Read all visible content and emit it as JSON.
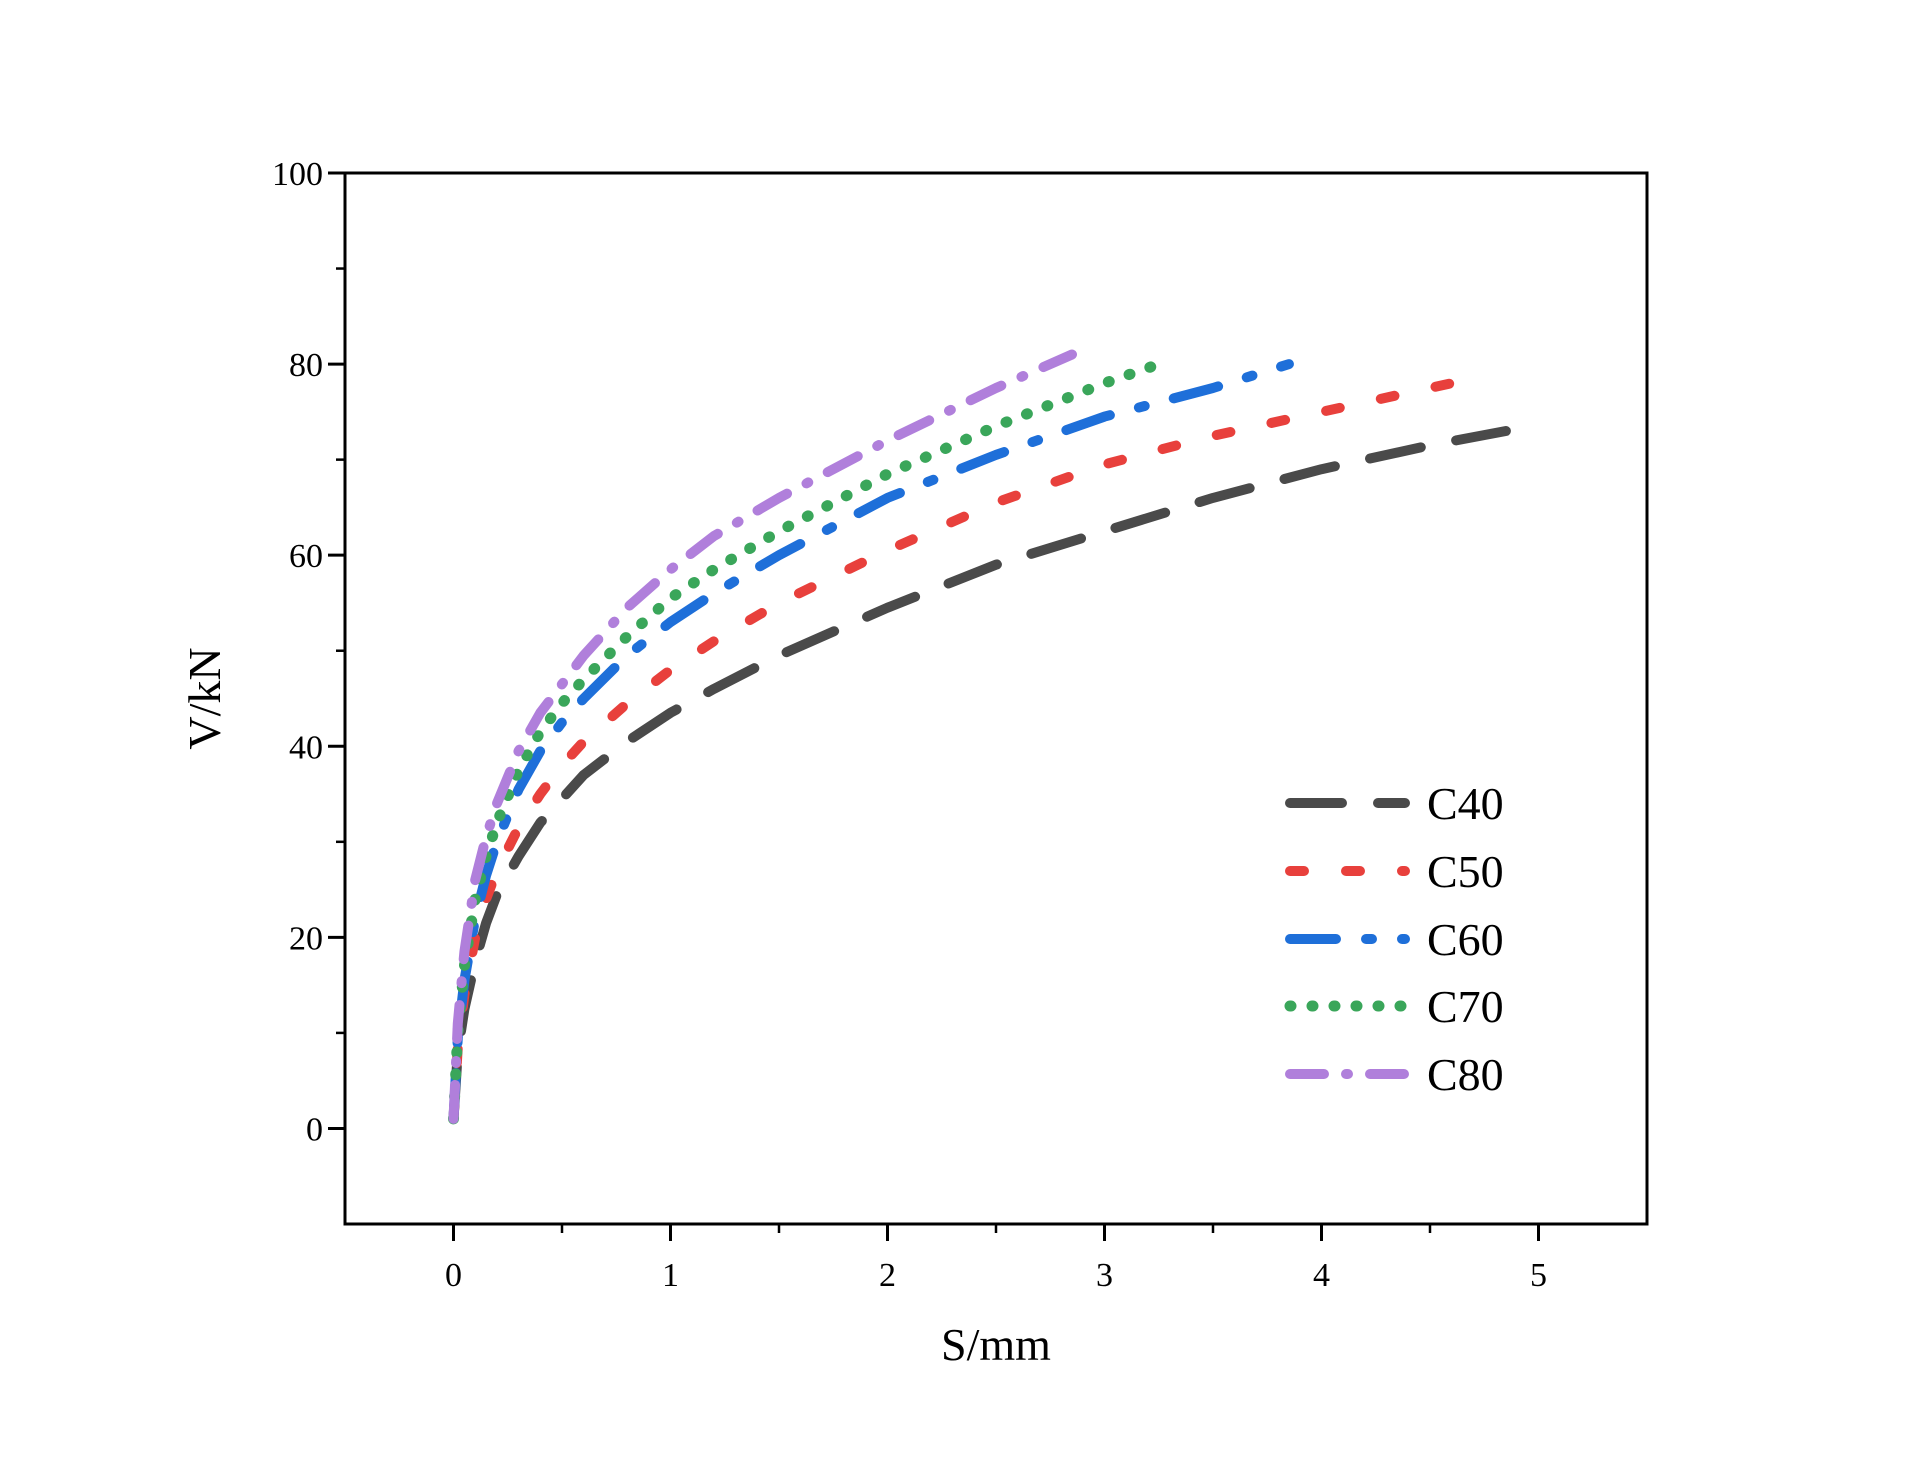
{
  "chart_data": {
    "type": "line",
    "title": "",
    "xlabel": "S/mm",
    "ylabel": "V/kN",
    "xlim": [
      -0.5,
      5.5
    ],
    "ylim": [
      -10,
      100
    ],
    "x_ticks": [
      0,
      1,
      2,
      3,
      4,
      5
    ],
    "y_ticks": [
      0,
      20,
      40,
      60,
      80,
      100
    ],
    "x_tick_labels": [
      "0",
      "1",
      "2",
      "3",
      "4",
      "5"
    ],
    "y_tick_labels": [
      "0",
      "20",
      "40",
      "60",
      "80",
      "100"
    ],
    "grid": false,
    "legend_position": "center-right",
    "series": [
      {
        "name": "C40",
        "color": "#4a4a4a",
        "dash": "long-dash",
        "x": [
          0,
          0.02,
          0.05,
          0.1,
          0.15,
          0.2,
          0.3,
          0.4,
          0.5,
          0.6,
          0.8,
          1.0,
          1.2,
          1.5,
          2.0,
          2.5,
          3.0,
          3.5,
          4.0,
          4.5,
          4.85
        ],
        "y": [
          1,
          8,
          12.5,
          17.5,
          21.5,
          24.5,
          28.5,
          32,
          34.5,
          37,
          40.5,
          43.5,
          46,
          49.5,
          54.5,
          59,
          62.5,
          66,
          69,
          71.5,
          73
        ]
      },
      {
        "name": "C50",
        "color": "#e8403c",
        "dash": "dash",
        "x": [
          0,
          0.02,
          0.05,
          0.1,
          0.15,
          0.2,
          0.3,
          0.4,
          0.5,
          0.6,
          0.8,
          1.0,
          1.2,
          1.5,
          2.0,
          2.5,
          3.0,
          3.5,
          4.0,
          4.6
        ],
        "y": [
          1,
          8.5,
          14,
          20,
          24,
          27,
          31.5,
          35,
          38,
          40.5,
          44.5,
          48,
          51,
          55,
          60.5,
          65.5,
          69.5,
          72.5,
          75,
          78
        ]
      },
      {
        "name": "C60",
        "color": "#1e6fd9",
        "dash": "dash-dot",
        "x": [
          0,
          0.02,
          0.05,
          0.1,
          0.15,
          0.2,
          0.3,
          0.4,
          0.5,
          0.6,
          0.8,
          1.0,
          1.2,
          1.5,
          2.0,
          2.5,
          3.0,
          3.5,
          3.85
        ],
        "y": [
          1,
          9.5,
          15.5,
          22,
          26.5,
          30,
          35.5,
          39.5,
          42.5,
          45,
          49.5,
          53,
          56,
          60,
          66,
          70.5,
          74.5,
          77.5,
          80
        ]
      },
      {
        "name": "C70",
        "color": "#3aa65a",
        "dash": "dot",
        "x": [
          0,
          0.02,
          0.05,
          0.1,
          0.15,
          0.2,
          0.3,
          0.4,
          0.5,
          0.6,
          0.8,
          1.0,
          1.2,
          1.5,
          2.0,
          2.5,
          3.0,
          3.25
        ],
        "y": [
          1,
          10,
          17,
          24,
          28.5,
          32,
          37.5,
          41.5,
          44.5,
          47,
          51.5,
          55.5,
          58.5,
          62.5,
          68.5,
          73.5,
          78,
          80
        ]
      },
      {
        "name": "C80",
        "color": "#b07fdb",
        "dash": "dash-dot-dot",
        "x": [
          0,
          0.02,
          0.05,
          0.1,
          0.15,
          0.2,
          0.3,
          0.4,
          0.5,
          0.6,
          0.8,
          1.0,
          1.2,
          1.5,
          2.0,
          2.5,
          2.85
        ],
        "y": [
          1,
          11,
          18.5,
          26,
          30.5,
          34,
          39.5,
          43.5,
          46.5,
          49.5,
          54.5,
          58.5,
          62,
          66,
          72,
          77.5,
          81
        ]
      }
    ]
  }
}
